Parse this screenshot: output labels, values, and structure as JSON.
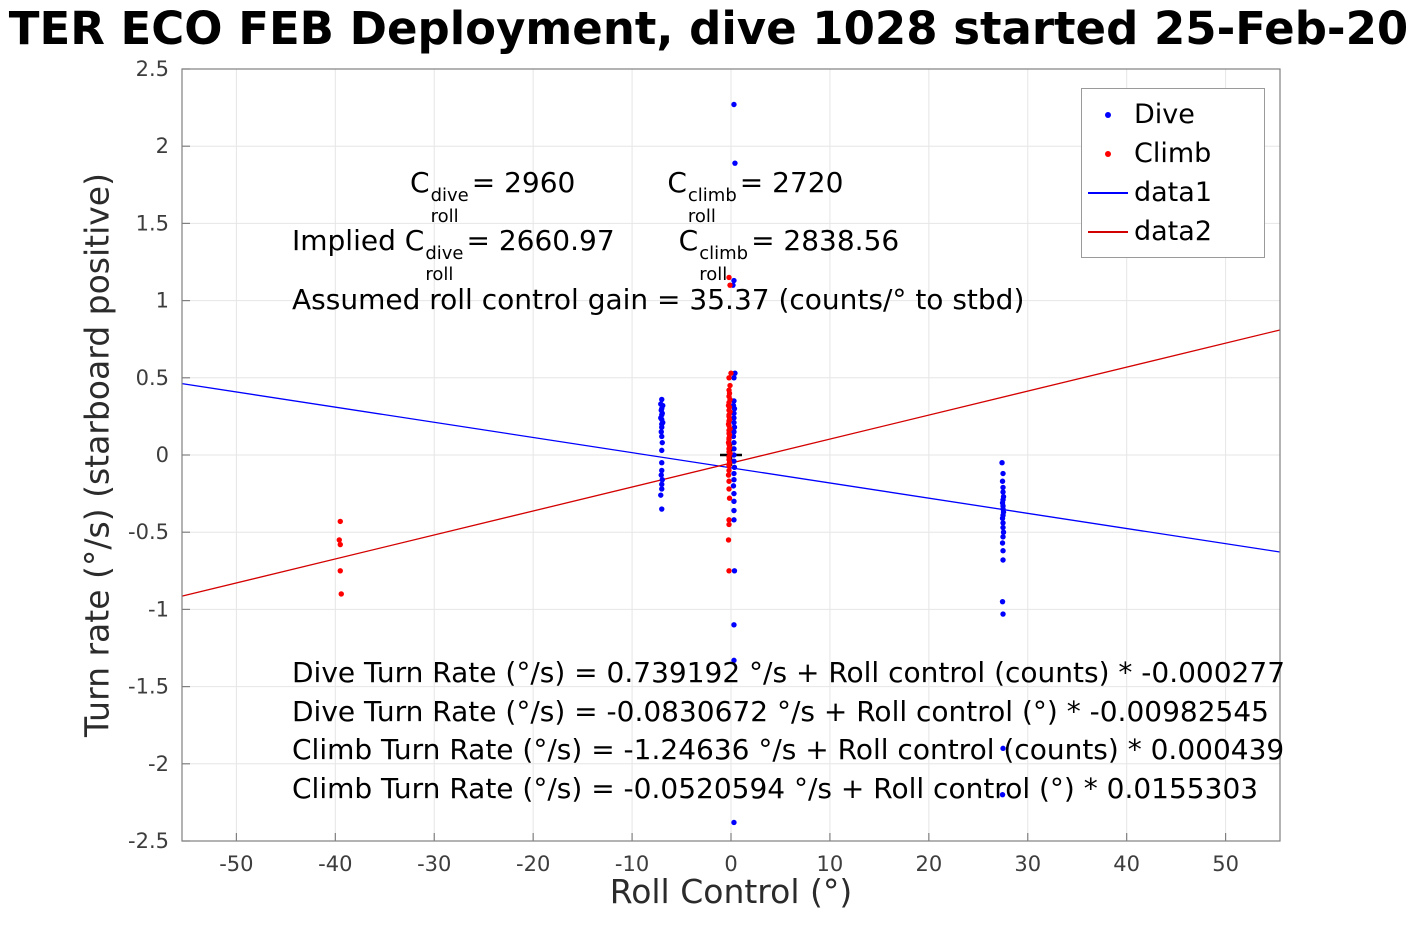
{
  "chart_data": {
    "type": "scatter",
    "title": "TER ECO FEB Deployment, dive 1028 started 25-Feb-20",
    "xlabel": "Roll Control (°)",
    "ylabel": "Turn rate (°/s) (starboard positive)",
    "xlim": [
      -55.5,
      55.5
    ],
    "ylim": [
      -2.5,
      2.5
    ],
    "grid": true,
    "xticks": [
      -50,
      -40,
      -30,
      -20,
      -10,
      0,
      10,
      20,
      30,
      40,
      50
    ],
    "xtick_labels": [
      "-50",
      "-40",
      "-30",
      "-20",
      "-10",
      "0",
      "10",
      "20",
      "30",
      "40",
      "50"
    ],
    "yticks": [
      -2.5,
      -2,
      -1.5,
      -1,
      -0.5,
      0,
      0.5,
      1,
      1.5,
      2,
      2.5
    ],
    "ytick_labels": [
      "-2.5",
      "-2",
      "-1.5",
      "-1",
      "-0.5",
      "0",
      "0.5",
      "1",
      "1.5",
      "2",
      "2.5"
    ],
    "style": {
      "grid": "#e6e6e6",
      "axis": "#808080",
      "tick_label": "#3d3d3d"
    },
    "origin_marker": {
      "x": 0,
      "y": 0,
      "color": "#000000",
      "shape": "plus"
    },
    "series": [
      {
        "name": "Dive",
        "type": "scatter",
        "color": "#0000ff",
        "points": [
          [
            -7.0,
            0.36
          ],
          [
            -7.1,
            0.33
          ],
          [
            -6.9,
            0.32
          ],
          [
            -7.0,
            0.3
          ],
          [
            -7.05,
            0.29
          ],
          [
            -6.95,
            0.27
          ],
          [
            -7.0,
            0.26
          ],
          [
            -7.1,
            0.24
          ],
          [
            -7.0,
            0.23
          ],
          [
            -6.9,
            0.21
          ],
          [
            -7.0,
            0.2
          ],
          [
            -7.0,
            0.18
          ],
          [
            -7.05,
            0.15
          ],
          [
            -7.0,
            0.12
          ],
          [
            -6.95,
            0.08
          ],
          [
            -7.0,
            0.03
          ],
          [
            -7.0,
            -0.05
          ],
          [
            -7.0,
            -0.1
          ],
          [
            -7.05,
            -0.13
          ],
          [
            -6.95,
            -0.16
          ],
          [
            -7.0,
            -0.19
          ],
          [
            -7.0,
            -0.22
          ],
          [
            -7.1,
            -0.26
          ],
          [
            -7.0,
            -0.35
          ],
          [
            0.3,
            2.27
          ],
          [
            0.4,
            1.89
          ],
          [
            0.3,
            1.13
          ],
          [
            0.2,
            1.1
          ],
          [
            0.4,
            0.53
          ],
          [
            0.3,
            0.5
          ],
          [
            0.3,
            0.35
          ],
          [
            0.25,
            0.32
          ],
          [
            0.35,
            0.3
          ],
          [
            0.3,
            0.27
          ],
          [
            0.3,
            0.24
          ],
          [
            0.3,
            0.21
          ],
          [
            0.35,
            0.18
          ],
          [
            0.3,
            0.15
          ],
          [
            0.25,
            0.12
          ],
          [
            0.3,
            0.08
          ],
          [
            0.3,
            0.04
          ],
          [
            0.3,
            0.0
          ],
          [
            0.3,
            -0.04
          ],
          [
            0.35,
            -0.08
          ],
          [
            0.3,
            -0.12
          ],
          [
            0.3,
            -0.16
          ],
          [
            0.25,
            -0.2
          ],
          [
            0.3,
            -0.25
          ],
          [
            0.3,
            -0.3
          ],
          [
            0.3,
            -0.36
          ],
          [
            0.3,
            -0.42
          ],
          [
            0.35,
            -0.75
          ],
          [
            0.3,
            -1.1
          ],
          [
            0.3,
            -1.33
          ],
          [
            0.3,
            -2.38
          ],
          [
            27.4,
            -0.05
          ],
          [
            27.5,
            -0.12
          ],
          [
            27.45,
            -0.17
          ],
          [
            27.5,
            -0.21
          ],
          [
            27.5,
            -0.24
          ],
          [
            27.55,
            -0.27
          ],
          [
            27.5,
            -0.29
          ],
          [
            27.45,
            -0.31
          ],
          [
            27.5,
            -0.33
          ],
          [
            27.5,
            -0.35
          ],
          [
            27.55,
            -0.37
          ],
          [
            27.5,
            -0.39
          ],
          [
            27.45,
            -0.41
          ],
          [
            27.5,
            -0.44
          ],
          [
            27.5,
            -0.47
          ],
          [
            27.55,
            -0.5
          ],
          [
            27.5,
            -0.53
          ],
          [
            27.45,
            -0.57
          ],
          [
            27.5,
            -0.62
          ],
          [
            27.5,
            -0.68
          ],
          [
            27.45,
            -0.95
          ],
          [
            27.5,
            -1.03
          ],
          [
            27.5,
            -1.9
          ],
          [
            27.45,
            -2.2
          ]
        ]
      },
      {
        "name": "Climb",
        "type": "scatter",
        "color": "#ff0000",
        "points": [
          [
            -39.5,
            -0.43
          ],
          [
            -39.6,
            -0.55
          ],
          [
            -39.5,
            -0.58
          ],
          [
            -39.5,
            -0.75
          ],
          [
            -39.4,
            -0.9
          ],
          [
            -0.2,
            1.15
          ],
          [
            -0.1,
            1.1
          ],
          [
            0.0,
            0.53
          ],
          [
            -0.2,
            0.5
          ],
          [
            -0.1,
            0.45
          ],
          [
            -0.2,
            0.42
          ],
          [
            -0.15,
            0.4
          ],
          [
            -0.2,
            0.38
          ],
          [
            -0.1,
            0.36
          ],
          [
            -0.2,
            0.34
          ],
          [
            -0.25,
            0.32
          ],
          [
            -0.15,
            0.31
          ],
          [
            -0.2,
            0.29
          ],
          [
            -0.1,
            0.28
          ],
          [
            -0.2,
            0.26
          ],
          [
            -0.2,
            0.25
          ],
          [
            -0.15,
            0.23
          ],
          [
            -0.2,
            0.22
          ],
          [
            -0.25,
            0.2
          ],
          [
            -0.2,
            0.19
          ],
          [
            -0.1,
            0.17
          ],
          [
            -0.2,
            0.16
          ],
          [
            -0.2,
            0.14
          ],
          [
            -0.15,
            0.13
          ],
          [
            -0.2,
            0.11
          ],
          [
            -0.2,
            0.1
          ],
          [
            -0.25,
            0.08
          ],
          [
            -0.2,
            0.07
          ],
          [
            -0.15,
            0.05
          ],
          [
            -0.2,
            0.04
          ],
          [
            -0.2,
            0.02
          ],
          [
            -0.1,
            0.01
          ],
          [
            -0.2,
            -0.01
          ],
          [
            -0.2,
            -0.03
          ],
          [
            -0.15,
            -0.05
          ],
          [
            -0.2,
            -0.07
          ],
          [
            -0.2,
            -0.1
          ],
          [
            -0.25,
            -0.13
          ],
          [
            -0.2,
            -0.17
          ],
          [
            -0.2,
            -0.22
          ],
          [
            -0.15,
            -0.28
          ],
          [
            -0.2,
            -0.42
          ],
          [
            -0.2,
            -0.45
          ],
          [
            -0.25,
            -0.55
          ],
          [
            -0.2,
            -0.75
          ]
        ]
      },
      {
        "name": "data1",
        "type": "line",
        "color": "#0000ff",
        "intercept": -0.0830672,
        "slope": -0.00982545
      },
      {
        "name": "data2",
        "type": "line",
        "color": "#d40000",
        "intercept": -0.0520594,
        "slope": 0.0155303
      }
    ],
    "legend": {
      "position": "top-right",
      "items": [
        {
          "label": "Dive",
          "marker": "dot",
          "color": "#0000ff"
        },
        {
          "label": "Climb",
          "marker": "dot",
          "color": "#ff0000"
        },
        {
          "label": "data1",
          "marker": "line",
          "color": "#0000ff"
        },
        {
          "label": "data2",
          "marker": "line",
          "color": "#d40000"
        }
      ]
    },
    "annotations": {
      "coeff_row": {
        "a_pre": "C",
        "a_sup": "dive",
        "a_sub": "roll",
        "a_val": " = 2960",
        "b_pre": "C",
        "b_sup": "climb",
        "b_sub": "roll",
        "b_val": " = 2720"
      },
      "implied_row": {
        "a_pre": "Implied C",
        "a_sup": "dive",
        "a_sub": "roll",
        "a_val": " = 2660.97",
        "b_pre": "C",
        "b_sup": "climb",
        "b_sub": "roll",
        "b_val": " = 2838.56"
      },
      "gain_row": "Assumed roll control gain = 35.37 (counts/° to stbd)",
      "fit_equations": [
        "Dive Turn Rate (°/s) = 0.739192 °/s + Roll control (counts) * -0.000277",
        "Dive Turn Rate (°/s) = -0.0830672 °/s + Roll control (°) * -0.00982545",
        "Climb Turn Rate (°/s) = -1.24636 °/s + Roll control (counts) * 0.000439",
        "Climb Turn Rate (°/s) = -0.0520594 °/s + Roll control (°) * 0.0155303"
      ]
    }
  }
}
